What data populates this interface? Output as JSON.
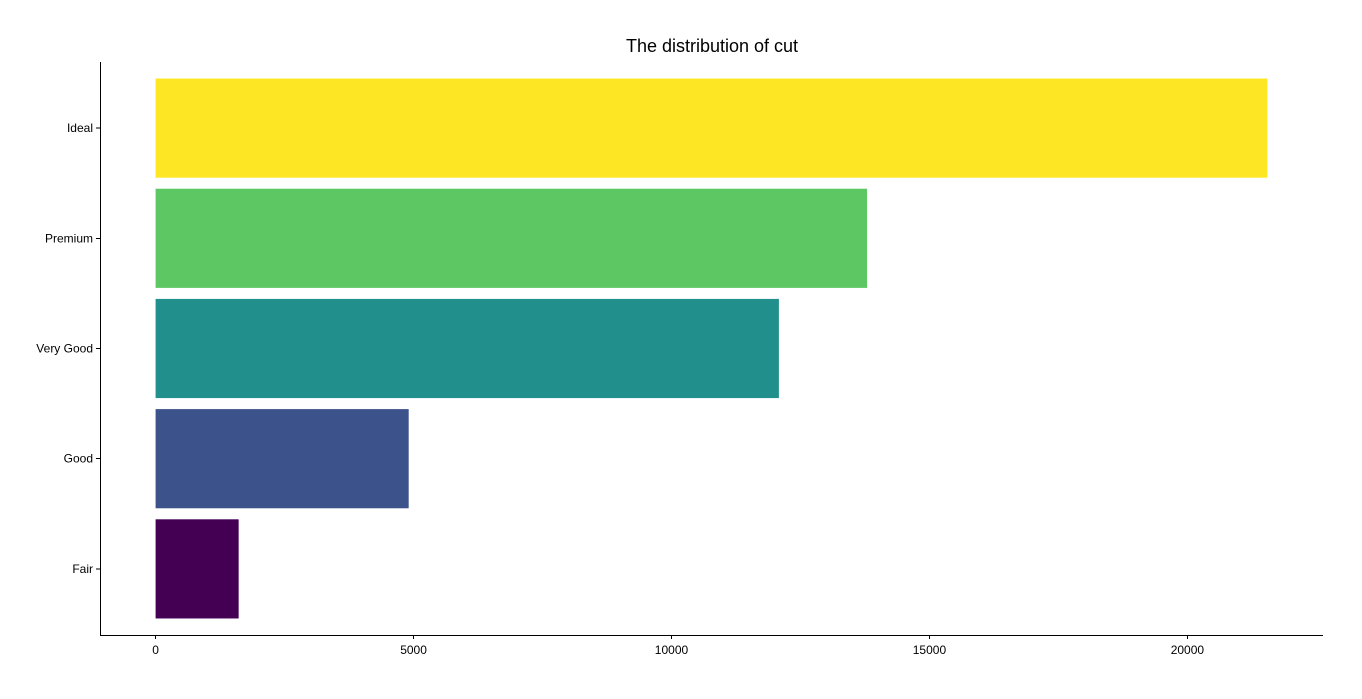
{
  "chart_data": {
    "type": "bar",
    "orientation": "horizontal",
    "title": "The distribution of cut",
    "xlabel": "",
    "ylabel": "",
    "categories": [
      "Fair",
      "Good",
      "Very Good",
      "Premium",
      "Ideal"
    ],
    "values": [
      1610,
      4906,
      12082,
      13791,
      21551
    ],
    "colors": [
      "#440154",
      "#3B528B",
      "#21908C",
      "#5DC863",
      "#FDE725"
    ],
    "xlim": [
      -1077.55,
      22628.55
    ],
    "xticks": [
      0,
      5000,
      10000,
      15000,
      20000
    ],
    "xtick_labels": [
      "0",
      "5000",
      "10000",
      "15000",
      "20000"
    ],
    "grid": false,
    "legend": "none"
  }
}
